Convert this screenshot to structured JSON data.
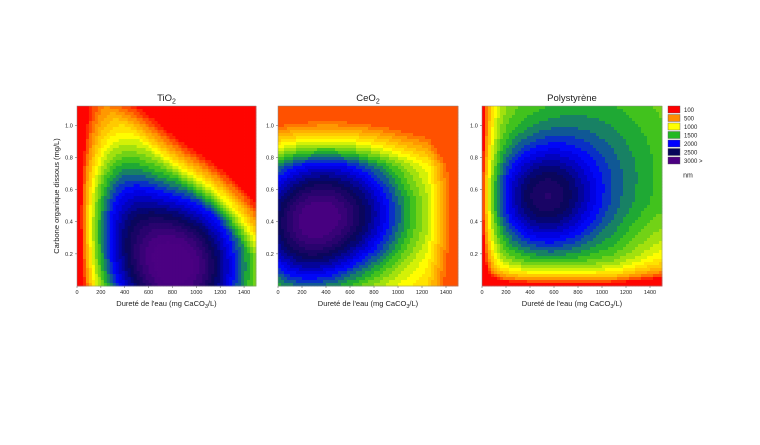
{
  "chart_data": [
    {
      "type": "heatmap",
      "title": "TiO2",
      "title_main": "TiO",
      "title_sub": "2",
      "xlabel_main": "Dureté de l'eau (mg CaCO",
      "xlabel_sub": "3",
      "xlabel_tail": "/L)",
      "ylabel": "Carbone organique dissous (mg/L)",
      "x_ticks": [
        "0",
        "200",
        "400",
        "600",
        "800",
        "1000",
        "1200",
        "1400"
      ],
      "y_ticks": [
        "0.2",
        "0.4",
        "0.6",
        "0.8",
        "1.0"
      ],
      "xlim": [
        0,
        1500
      ],
      "ylim": [
        0,
        1.12
      ],
      "z_unit": "nm",
      "surface": {
        "description": "large sizes (3000+) at high hardness and low DOC, small (100) at high hardness and high DOC and at zero hardness",
        "peak": {
          "x": 900,
          "y": 0.15,
          "z": 3100
        },
        "low_regions": [
          {
            "x": 1500,
            "y": 1.12,
            "z": 100
          },
          {
            "x": 0,
            "y": 0.0,
            "z": 200
          }
        ]
      }
    },
    {
      "type": "heatmap",
      "title": "CeO2",
      "title_main": "CeO",
      "title_sub": "2",
      "xlabel_main": "Dureté de l'eau (mg CaCO",
      "xlabel_sub": "3",
      "xlabel_tail": "/L)",
      "ylabel": "",
      "x_ticks": [
        "0",
        "200",
        "400",
        "600",
        "800",
        "1000",
        "1200",
        "1400"
      ],
      "y_ticks": [
        "0.2",
        "0.4",
        "0.6",
        "0.8",
        "1.0"
      ],
      "xlim": [
        0,
        1500
      ],
      "ylim": [
        0,
        1.12
      ],
      "z_unit": "nm",
      "surface": {
        "description": "maximum (~2700) around hardness 400 and DOC 0.45; small sizes at high DOC",
        "peak": {
          "x": 420,
          "y": 0.45,
          "z": 2700
        },
        "low_regions": [
          {
            "x": 700,
            "y": 1.12,
            "z": 500
          }
        ]
      }
    },
    {
      "type": "heatmap",
      "title": "Polystyrène",
      "title_main": "Polystyrène",
      "title_sub": "",
      "xlabel_main": "Dureté de l'eau (mg CaCO",
      "xlabel_sub": "3",
      "xlabel_tail": "/L)",
      "ylabel": "",
      "x_ticks": [
        "0",
        "200",
        "400",
        "600",
        "800",
        "1000",
        "1200",
        "1400"
      ],
      "y_ticks": [
        "0.2",
        "0.4",
        "0.6",
        "0.8",
        "1.0"
      ],
      "xlim": [
        0,
        1500
      ],
      "ylim": [
        0,
        1.12
      ],
      "z_unit": "nm",
      "surface": {
        "description": "small sizes along zero hardness and zero DOC edges; maximum (~2300) around hardness 500 and DOC 0.55",
        "peak": {
          "x": 500,
          "y": 0.55,
          "z": 2300
        },
        "low_regions": [
          {
            "x": 0,
            "y": 0.0,
            "z": 100
          }
        ]
      }
    }
  ],
  "legend": {
    "entries": [
      {
        "label": "100",
        "color": "#ff0000"
      },
      {
        "label": "500",
        "color": "#ff8c00"
      },
      {
        "label": "1000",
        "color": "#ffff00"
      },
      {
        "label": "1500",
        "color": "#22b822"
      },
      {
        "label": "2000",
        "color": "#0000ff"
      },
      {
        "label": "2500",
        "color": "#06065a"
      },
      {
        "label": "3000 >",
        "color": "#4b0082"
      }
    ],
    "unit": "nm",
    "placement": "right"
  }
}
